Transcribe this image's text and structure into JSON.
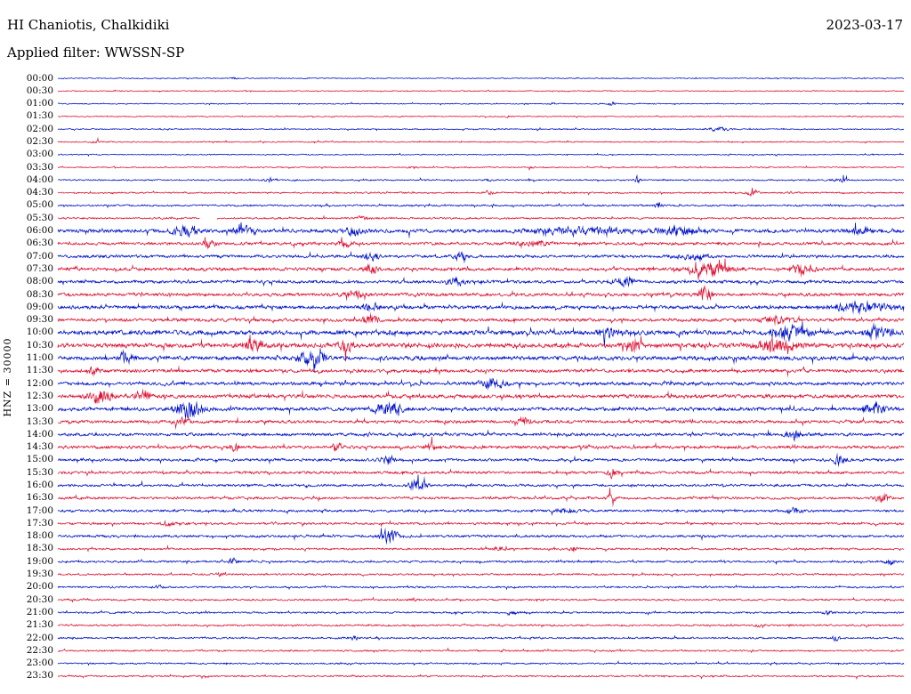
{
  "header": {
    "station": "HI Chaniotis, Chalkidiki",
    "date": "2023-03-17",
    "filter": "Applied filter: WWSSN-SP"
  },
  "y_axis_label": "HNZ = 30000",
  "colors": {
    "blue": "#0012c8",
    "red": "#dd1133",
    "text": "#000000",
    "background": "#ffffff"
  },
  "chart_data": {
    "type": "line",
    "subtype": "helicorder-seismogram",
    "station": "HI Chaniotis, Chalkidiki",
    "channel": "HNZ",
    "scale": 30000,
    "date": "2023-03-17",
    "filter": "WWSSN-SP",
    "row_duration_minutes": 30,
    "color_alternation": [
      "blue",
      "red"
    ],
    "legend": "none",
    "grid": false,
    "note": "events are [position_fraction, relative_amplitude, width_fraction]; gaps are [position_fraction, width_fraction]",
    "rows": [
      {
        "time": "00:00",
        "color": "blue",
        "noise": 0.5,
        "events": [
          [
            0.21,
            2.5,
            0.004
          ]
        ]
      },
      {
        "time": "00:30",
        "color": "red",
        "noise": 0.5,
        "events": []
      },
      {
        "time": "01:00",
        "color": "blue",
        "noise": 0.5,
        "events": [
          [
            0.585,
            2,
            0.003
          ],
          [
            0.655,
            3,
            0.004
          ]
        ]
      },
      {
        "time": "01:30",
        "color": "red",
        "noise": 0.5,
        "events": [
          [
            0.53,
            2,
            0.004
          ]
        ]
      },
      {
        "time": "02:00",
        "color": "blue",
        "noise": 0.6,
        "events": [
          [
            0.78,
            3.5,
            0.012
          ]
        ]
      },
      {
        "time": "02:30",
        "color": "red",
        "noise": 0.6,
        "events": [
          [
            0.045,
            2,
            0.005
          ]
        ]
      },
      {
        "time": "03:00",
        "color": "blue",
        "noise": 0.55,
        "events": []
      },
      {
        "time": "03:30",
        "color": "red",
        "noise": 0.6,
        "events": [
          [
            0.42,
            2,
            0.005
          ],
          [
            0.56,
            1.8,
            0.004
          ]
        ]
      },
      {
        "time": "04:00",
        "color": "blue",
        "noise": 0.7,
        "events": [
          [
            0.25,
            3.5,
            0.006
          ],
          [
            0.51,
            1.5,
            0.004
          ],
          [
            0.685,
            4,
            0.005
          ],
          [
            0.925,
            3.5,
            0.008
          ]
        ]
      },
      {
        "time": "04:30",
        "color": "red",
        "noise": 0.8,
        "events": [
          [
            0.51,
            2,
            0.006
          ],
          [
            0.82,
            4,
            0.007
          ]
        ]
      },
      {
        "time": "05:00",
        "color": "blue",
        "noise": 0.9,
        "events": [
          [
            0.71,
            2.5,
            0.006
          ]
        ]
      },
      {
        "time": "05:30",
        "color": "red",
        "noise": 0.9,
        "events": [
          [
            0.36,
            2,
            0.006
          ]
        ],
        "gaps": [
          [
            0.168,
            0.02
          ]
        ]
      },
      {
        "time": "06:00",
        "color": "blue",
        "noise": 1.8,
        "events": [
          [
            0.15,
            2.5,
            0.015
          ],
          [
            0.22,
            2.2,
            0.01
          ],
          [
            0.35,
            2,
            0.01
          ],
          [
            0.62,
            1.8,
            0.05
          ],
          [
            0.73,
            2,
            0.02
          ],
          [
            0.95,
            1.8,
            0.01
          ]
        ]
      },
      {
        "time": "06:30",
        "color": "red",
        "noise": 1.4,
        "events": [
          [
            0.18,
            2.8,
            0.008
          ],
          [
            0.34,
            2.2,
            0.008
          ],
          [
            0.56,
            1.5,
            0.02
          ]
        ]
      },
      {
        "time": "07:00",
        "color": "blue",
        "noise": 1.4,
        "events": [
          [
            0.37,
            2.2,
            0.01
          ],
          [
            0.475,
            2.2,
            0.008
          ],
          [
            0.75,
            1.5,
            0.02
          ]
        ]
      },
      {
        "time": "07:30",
        "color": "red",
        "noise": 1.6,
        "events": [
          [
            0.37,
            2.5,
            0.008
          ],
          [
            0.77,
            3.5,
            0.025
          ],
          [
            0.88,
            2.5,
            0.015
          ]
        ]
      },
      {
        "time": "08:00",
        "color": "blue",
        "noise": 1.5,
        "events": [
          [
            0.47,
            2.5,
            0.01
          ],
          [
            0.67,
            2.5,
            0.012
          ]
        ]
      },
      {
        "time": "08:30",
        "color": "red",
        "noise": 1.6,
        "events": [
          [
            0.35,
            2.2,
            0.01
          ],
          [
            0.765,
            4,
            0.008
          ]
        ]
      },
      {
        "time": "09:00",
        "color": "blue",
        "noise": 1.7,
        "events": [
          [
            0.37,
            2,
            0.01
          ],
          [
            0.95,
            2.8,
            0.03
          ]
        ]
      },
      {
        "time": "09:30",
        "color": "red",
        "noise": 1.6,
        "events": [
          [
            0.37,
            3,
            0.008
          ],
          [
            0.85,
            2.2,
            0.015
          ]
        ]
      },
      {
        "time": "10:00",
        "color": "blue",
        "noise": 2.2,
        "events": [
          [
            0.65,
            2,
            0.01
          ],
          [
            0.865,
            3,
            0.02
          ],
          [
            0.97,
            2.5,
            0.015
          ]
        ]
      },
      {
        "time": "10:30",
        "color": "red",
        "noise": 2.2,
        "events": [
          [
            0.23,
            2.2,
            0.01
          ],
          [
            0.34,
            2.5,
            0.008
          ],
          [
            0.68,
            3,
            0.008
          ],
          [
            0.85,
            3.2,
            0.02
          ]
        ]
      },
      {
        "time": "11:00",
        "color": "blue",
        "noise": 2,
        "events": [
          [
            0.08,
            2.5,
            0.008
          ],
          [
            0.3,
            3,
            0.015
          ]
        ]
      },
      {
        "time": "11:30",
        "color": "red",
        "noise": 1.6,
        "events": [
          [
            0.04,
            2.2,
            0.008
          ]
        ]
      },
      {
        "time": "12:00",
        "color": "blue",
        "noise": 1.6,
        "events": [
          [
            0.515,
            3,
            0.015
          ]
        ]
      },
      {
        "time": "12:30",
        "color": "red",
        "noise": 1.8,
        "events": [
          [
            0.05,
            4,
            0.012
          ],
          [
            0.1,
            3,
            0.008
          ]
        ]
      },
      {
        "time": "13:00",
        "color": "blue",
        "noise": 1.8,
        "events": [
          [
            0.155,
            4.5,
            0.015
          ],
          [
            0.39,
            4,
            0.015
          ],
          [
            0.965,
            4,
            0.01
          ]
        ]
      },
      {
        "time": "13:30",
        "color": "red",
        "noise": 1.5,
        "events": [
          [
            0.145,
            2.2,
            0.008
          ],
          [
            0.55,
            2.8,
            0.008
          ]
        ]
      },
      {
        "time": "14:00",
        "color": "blue",
        "noise": 1.5,
        "events": [
          [
            0.87,
            2.8,
            0.008
          ]
        ]
      },
      {
        "time": "14:30",
        "color": "red",
        "noise": 1.5,
        "events": [
          [
            0.21,
            2.2,
            0.006
          ],
          [
            0.33,
            2.2,
            0.006
          ],
          [
            0.44,
            2.2,
            0.006
          ]
        ]
      },
      {
        "time": "15:00",
        "color": "blue",
        "noise": 1.4,
        "events": [
          [
            0.39,
            2.6,
            0.008
          ],
          [
            0.925,
            3.5,
            0.008
          ]
        ]
      },
      {
        "time": "15:30",
        "color": "red",
        "noise": 1.3,
        "events": [
          [
            0.655,
            4,
            0.006
          ]
        ]
      },
      {
        "time": "16:00",
        "color": "blue",
        "noise": 1.2,
        "events": [
          [
            0.425,
            4.5,
            0.01
          ]
        ]
      },
      {
        "time": "16:30",
        "color": "red",
        "noise": 1.2,
        "events": [
          [
            0.655,
            2.2,
            0.006
          ],
          [
            0.975,
            3.5,
            0.008
          ]
        ]
      },
      {
        "time": "17:00",
        "color": "blue",
        "noise": 1.2,
        "events": [
          [
            0.6,
            1.8,
            0.01
          ],
          [
            0.87,
            1.8,
            0.01
          ]
        ]
      },
      {
        "time": "17:30",
        "color": "red",
        "noise": 1.1,
        "events": [
          [
            0.13,
            2.2,
            0.006
          ]
        ]
      },
      {
        "time": "18:00",
        "color": "blue",
        "noise": 1.2,
        "events": [
          [
            0.392,
            5.5,
            0.01
          ]
        ]
      },
      {
        "time": "18:30",
        "color": "red",
        "noise": 1,
        "events": [
          [
            0.52,
            1.8,
            0.008
          ],
          [
            0.61,
            1.8,
            0.006
          ]
        ]
      },
      {
        "time": "19:00",
        "color": "blue",
        "noise": 1,
        "events": [
          [
            0.207,
            3.2,
            0.005
          ],
          [
            0.983,
            3.2,
            0.005
          ]
        ]
      },
      {
        "time": "19:30",
        "color": "red",
        "noise": 0.9,
        "events": [
          [
            0.19,
            2.2,
            0.005
          ]
        ]
      },
      {
        "time": "20:00",
        "color": "blue",
        "noise": 0.9,
        "events": [
          [
            0.12,
            1.8,
            0.005
          ]
        ]
      },
      {
        "time": "20:30",
        "color": "red",
        "noise": 0.9,
        "events": [
          [
            0.42,
            1.8,
            0.005
          ]
        ]
      },
      {
        "time": "21:00",
        "color": "blue",
        "noise": 0.9,
        "events": [
          [
            0.54,
            1.8,
            0.005
          ],
          [
            0.91,
            2.2,
            0.005
          ]
        ]
      },
      {
        "time": "21:30",
        "color": "red",
        "noise": 0.9,
        "events": [
          [
            0.83,
            2.2,
            0.005
          ]
        ]
      },
      {
        "time": "22:00",
        "color": "blue",
        "noise": 0.9,
        "events": [
          [
            0.35,
            1.8,
            0.005
          ],
          [
            0.92,
            3.2,
            0.005
          ]
        ]
      },
      {
        "time": "22:30",
        "color": "red",
        "noise": 0.8,
        "events": []
      },
      {
        "time": "23:00",
        "color": "blue",
        "noise": 0.8,
        "events": []
      },
      {
        "time": "23:30",
        "color": "red",
        "noise": 0.8,
        "events": []
      }
    ]
  }
}
